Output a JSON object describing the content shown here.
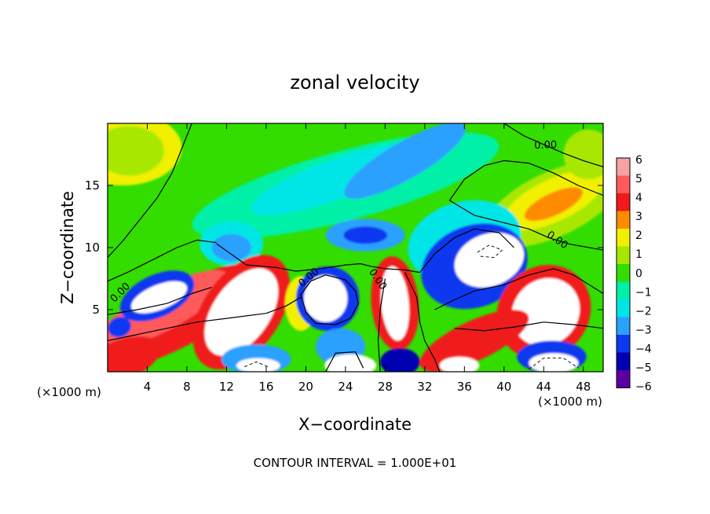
{
  "chart_data": {
    "type": "heatmap",
    "title": "zonal velocity",
    "xlabel": "X−coordinate",
    "ylabel": "Z−coordinate",
    "x_unit_left": "(×1000 m)",
    "x_unit_right": "(×1000 m)",
    "footer": "CONTOUR INTERVAL = 1.000E+01",
    "xlim": [
      0,
      50
    ],
    "ylim": [
      0,
      20
    ],
    "x_ticks": [
      4,
      8,
      12,
      16,
      20,
      24,
      28,
      32,
      36,
      40,
      44,
      48
    ],
    "y_ticks": [
      5,
      10,
      15
    ],
    "colorbar": {
      "levels": [
        6,
        5,
        4,
        3,
        2,
        1,
        0,
        -1,
        -2,
        -3,
        -4,
        -5,
        -6
      ],
      "labels": [
        "6",
        "5",
        "4",
        "3",
        "2",
        "1",
        "0",
        "−1",
        "−2",
        "−3",
        "−4",
        "−5",
        "−6"
      ],
      "colors": [
        "#f4a2a2",
        "#ff5a5a",
        "#f01a1a",
        "#ff8c00",
        "#f0f000",
        "#a8e800",
        "#33dd00",
        "#00f0a8",
        "#00e6e6",
        "#2aa0ff",
        "#0a37f0",
        "#0000b0",
        "#5a00a0"
      ]
    },
    "contour_labels": [
      {
        "text": "0.00",
        "x": 44.2,
        "y": 18.0,
        "angle": -2
      },
      {
        "text": "0.00",
        "x": 45.2,
        "y": 10.4,
        "angle": 35
      },
      {
        "text": "0.00",
        "x": 1.5,
        "y": 6.2,
        "angle": -45
      },
      {
        "text": "0.00",
        "x": 20.5,
        "y": 7.4,
        "angle": -40
      },
      {
        "text": "0.00",
        "x": 27.0,
        "y": 7.3,
        "angle": 55
      }
    ]
  }
}
